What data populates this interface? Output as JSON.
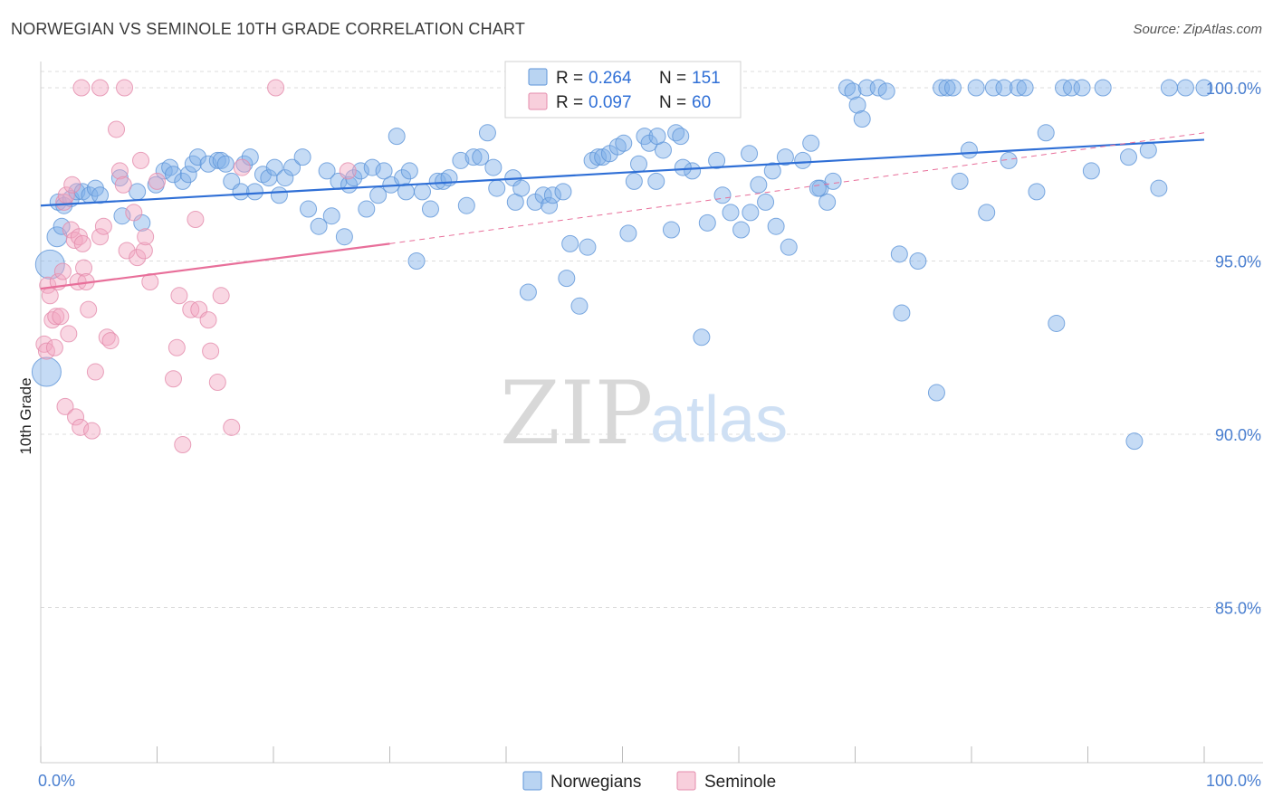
{
  "header": {
    "title": "NORWEGIAN VS SEMINOLE 10TH GRADE CORRELATION CHART",
    "source": "Source: ZipAtlas.com"
  },
  "colors": {
    "blue": "#7fb0e8",
    "blue_line": "#2f6fd6",
    "pink": "#f2a7c0",
    "pink_line": "#e86f9a"
  },
  "watermark": {
    "zip": "ZIP",
    "atlas": "atlas"
  },
  "legend": {
    "rows": [
      {
        "r_label": "R = ",
        "r_value": "0.264",
        "n_label": "N = ",
        "n_value": "151"
      },
      {
        "r_label": "R = ",
        "r_value": "0.097",
        "n_label": "N = ",
        "n_value": "60"
      }
    ]
  },
  "bottom_legend": [
    "Norwegians",
    "Seminole"
  ],
  "chart_data": {
    "type": "scatter",
    "title": "NORWEGIAN VS SEMINOLE 10TH GRADE CORRELATION CHART",
    "xlabel": "",
    "ylabel": "10th Grade",
    "xlim": [
      0,
      100
    ],
    "ylim": [
      80.5,
      100.6
    ],
    "x_tick_labels": [
      "0.0%",
      "100.0%"
    ],
    "y_ticks": [
      85,
      90,
      95,
      100
    ],
    "y_tick_labels": [
      "85.0%",
      "90.0%",
      "95.0%",
      "100.0%"
    ],
    "grid": true,
    "series": [
      {
        "name": "Norwegians",
        "r": 0.264,
        "n": 151,
        "trend": {
          "x0": 0,
          "y0": 96.6,
          "x1": 100,
          "y1": 98.5
        },
        "points": [
          [
            0.5,
            91.8
          ],
          [
            0.8,
            94.9
          ],
          [
            1.4,
            95.7
          ],
          [
            1.8,
            96.0
          ],
          [
            1.5,
            96.7
          ],
          [
            2.0,
            96.6
          ],
          [
            2.6,
            96.8
          ],
          [
            3.1,
            97.0
          ],
          [
            3.6,
            97.0
          ],
          [
            4.2,
            96.9
          ],
          [
            4.7,
            97.1
          ],
          [
            5.1,
            96.9
          ],
          [
            6.8,
            97.4
          ],
          [
            7.0,
            96.3
          ],
          [
            8.3,
            97.0
          ],
          [
            8.7,
            96.1
          ],
          [
            9.9,
            97.2
          ],
          [
            10.6,
            97.6
          ],
          [
            11.1,
            97.7
          ],
          [
            11.4,
            97.5
          ],
          [
            12.2,
            97.3
          ],
          [
            12.7,
            97.5
          ],
          [
            13.1,
            97.8
          ],
          [
            13.5,
            98.0
          ],
          [
            14.4,
            97.8
          ],
          [
            15.2,
            97.9
          ],
          [
            15.5,
            97.9
          ],
          [
            15.9,
            97.8
          ],
          [
            16.4,
            97.3
          ],
          [
            17.2,
            97.0
          ],
          [
            17.5,
            97.8
          ],
          [
            18.0,
            98.0
          ],
          [
            18.4,
            97.0
          ],
          [
            19.1,
            97.5
          ],
          [
            19.6,
            97.4
          ],
          [
            20.1,
            97.7
          ],
          [
            20.5,
            96.9
          ],
          [
            21.0,
            97.4
          ],
          [
            21.6,
            97.7
          ],
          [
            22.5,
            98.0
          ],
          [
            23.0,
            96.5
          ],
          [
            23.9,
            96.0
          ],
          [
            24.6,
            97.6
          ],
          [
            25.0,
            96.3
          ],
          [
            25.6,
            97.3
          ],
          [
            26.1,
            95.7
          ],
          [
            26.5,
            97.2
          ],
          [
            26.9,
            97.4
          ],
          [
            27.5,
            97.6
          ],
          [
            28.0,
            96.5
          ],
          [
            28.5,
            97.7
          ],
          [
            29.0,
            96.9
          ],
          [
            29.5,
            97.6
          ],
          [
            30.1,
            97.2
          ],
          [
            30.6,
            98.6
          ],
          [
            31.1,
            97.4
          ],
          [
            31.4,
            97.0
          ],
          [
            31.7,
            97.6
          ],
          [
            32.3,
            95.0
          ],
          [
            32.8,
            97.0
          ],
          [
            33.5,
            96.5
          ],
          [
            34.1,
            97.3
          ],
          [
            34.6,
            97.3
          ],
          [
            35.1,
            97.4
          ],
          [
            36.1,
            97.9
          ],
          [
            36.6,
            96.6
          ],
          [
            37.2,
            98.0
          ],
          [
            37.8,
            98.0
          ],
          [
            38.4,
            98.7
          ],
          [
            38.9,
            97.7
          ],
          [
            39.2,
            97.1
          ],
          [
            40.6,
            97.4
          ],
          [
            40.8,
            96.7
          ],
          [
            41.3,
            97.1
          ],
          [
            41.9,
            94.1
          ],
          [
            42.5,
            96.7
          ],
          [
            43.2,
            96.9
          ],
          [
            43.7,
            96.6
          ],
          [
            44.0,
            96.9
          ],
          [
            44.9,
            97.0
          ],
          [
            45.2,
            94.5
          ],
          [
            45.5,
            95.5
          ],
          [
            46.3,
            93.7
          ],
          [
            47.0,
            95.4
          ],
          [
            47.4,
            97.9
          ],
          [
            47.9,
            98.0
          ],
          [
            48.3,
            98.0
          ],
          [
            48.9,
            98.1
          ],
          [
            49.6,
            98.3
          ],
          [
            50.1,
            98.4
          ],
          [
            50.5,
            95.8
          ],
          [
            51.0,
            97.3
          ],
          [
            51.4,
            97.8
          ],
          [
            51.9,
            98.6
          ],
          [
            52.3,
            98.4
          ],
          [
            52.9,
            97.3
          ],
          [
            53.5,
            98.2
          ],
          [
            54.2,
            95.9
          ],
          [
            54.6,
            98.7
          ],
          [
            55.0,
            98.6
          ],
          [
            56.0,
            97.6
          ],
          [
            56.8,
            92.8
          ],
          [
            57.3,
            96.1
          ],
          [
            58.1,
            97.9
          ],
          [
            58.6,
            96.9
          ],
          [
            59.3,
            96.4
          ],
          [
            60.2,
            95.9
          ],
          [
            61.0,
            96.4
          ],
          [
            61.7,
            97.2
          ],
          [
            62.3,
            96.7
          ],
          [
            62.9,
            97.6
          ],
          [
            63.2,
            96.0
          ],
          [
            64.0,
            98.0
          ],
          [
            64.3,
            95.4
          ],
          [
            65.5,
            97.9
          ],
          [
            66.2,
            98.4
          ],
          [
            67.0,
            97.1
          ],
          [
            67.6,
            96.7
          ],
          [
            68.1,
            97.3
          ],
          [
            69.3,
            100.0
          ],
          [
            69.8,
            99.9
          ],
          [
            70.2,
            99.5
          ],
          [
            71.0,
            100.0
          ],
          [
            72.0,
            100.0
          ],
          [
            72.7,
            99.9
          ],
          [
            73.8,
            95.2
          ],
          [
            74.0,
            93.5
          ],
          [
            75.4,
            95.0
          ],
          [
            77.0,
            91.2
          ],
          [
            77.4,
            100.0
          ],
          [
            77.9,
            100.0
          ],
          [
            78.4,
            100.0
          ],
          [
            79.0,
            97.3
          ],
          [
            79.8,
            98.2
          ],
          [
            80.4,
            100.0
          ],
          [
            81.3,
            96.4
          ],
          [
            81.9,
            100.0
          ],
          [
            82.8,
            100.0
          ],
          [
            83.2,
            97.9
          ],
          [
            84.0,
            100.0
          ],
          [
            84.6,
            100.0
          ],
          [
            85.6,
            97.0
          ],
          [
            86.4,
            98.7
          ],
          [
            87.3,
            93.2
          ],
          [
            87.9,
            100.0
          ],
          [
            88.6,
            100.0
          ],
          [
            89.5,
            100.0
          ],
          [
            90.3,
            97.6
          ],
          [
            91.3,
            100.0
          ],
          [
            93.5,
            98.0
          ],
          [
            94.0,
            89.8
          ],
          [
            95.2,
            98.2
          ],
          [
            96.1,
            97.1
          ],
          [
            97.0,
            100.0
          ],
          [
            98.4,
            100.0
          ],
          [
            100.0,
            100.0
          ],
          [
            53.0,
            98.6
          ],
          [
            55.2,
            97.7
          ],
          [
            60.9,
            98.1
          ],
          [
            66.8,
            97.1
          ],
          [
            70.6,
            99.1
          ]
        ]
      },
      {
        "name": "Seminole",
        "r": 0.097,
        "n": 60,
        "trend": {
          "x0": 0,
          "y0": 94.2,
          "x1": 30,
          "y1": 95.5
        },
        "trend_ext": {
          "x0": 30,
          "y0": 95.5,
          "x1": 100,
          "y1": 98.7
        },
        "points": [
          [
            0.3,
            92.6
          ],
          [
            0.5,
            92.4
          ],
          [
            0.6,
            94.3
          ],
          [
            0.8,
            94.0
          ],
          [
            1.0,
            93.3
          ],
          [
            1.2,
            92.5
          ],
          [
            1.3,
            93.4
          ],
          [
            1.5,
            94.4
          ],
          [
            1.7,
            93.4
          ],
          [
            1.9,
            94.7
          ],
          [
            2.0,
            96.7
          ],
          [
            2.1,
            90.8
          ],
          [
            2.2,
            96.9
          ],
          [
            2.4,
            92.9
          ],
          [
            2.6,
            95.9
          ],
          [
            2.7,
            97.2
          ],
          [
            2.9,
            95.6
          ],
          [
            3.0,
            90.5
          ],
          [
            3.2,
            94.4
          ],
          [
            3.3,
            95.7
          ],
          [
            3.4,
            90.2
          ],
          [
            3.6,
            95.5
          ],
          [
            3.7,
            94.8
          ],
          [
            3.9,
            94.4
          ],
          [
            4.1,
            93.6
          ],
          [
            4.4,
            90.1
          ],
          [
            4.7,
            91.8
          ],
          [
            5.1,
            95.7
          ],
          [
            5.4,
            96.0
          ],
          [
            5.7,
            92.8
          ],
          [
            6.0,
            92.7
          ],
          [
            6.5,
            98.8
          ],
          [
            6.8,
            97.6
          ],
          [
            7.1,
            97.2
          ],
          [
            7.4,
            95.3
          ],
          [
            8.0,
            96.4
          ],
          [
            8.3,
            95.1
          ],
          [
            8.6,
            97.9
          ],
          [
            8.9,
            95.3
          ],
          [
            9.0,
            95.7
          ],
          [
            9.4,
            94.4
          ],
          [
            10.0,
            97.3
          ],
          [
            11.4,
            91.6
          ],
          [
            11.7,
            92.5
          ],
          [
            11.9,
            94.0
          ],
          [
            12.2,
            89.7
          ],
          [
            12.9,
            93.6
          ],
          [
            13.3,
            96.2
          ],
          [
            13.6,
            93.6
          ],
          [
            14.4,
            93.3
          ],
          [
            14.6,
            92.4
          ],
          [
            15.2,
            91.5
          ],
          [
            15.5,
            94.0
          ],
          [
            16.4,
            90.2
          ],
          [
            17.3,
            97.7
          ],
          [
            26.4,
            97.6
          ],
          [
            3.5,
            100.0
          ],
          [
            5.1,
            100.0
          ],
          [
            7.2,
            100.0
          ],
          [
            20.2,
            100.0
          ]
        ]
      }
    ]
  }
}
